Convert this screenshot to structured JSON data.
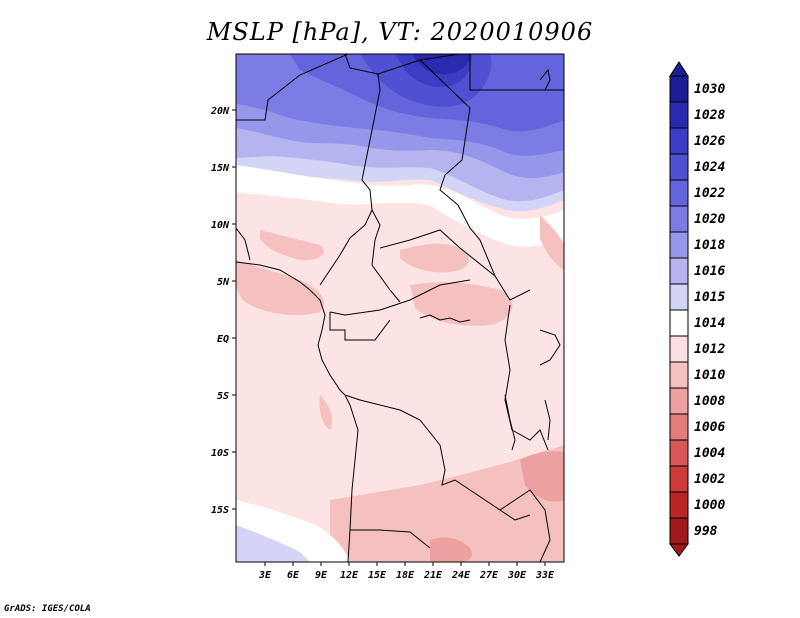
{
  "map": {
    "title": "MSLP [hPa], VT: 2020010906",
    "credit": "GrADS: IGES/COLA",
    "lat_labels": [
      "20N",
      "15N",
      "10N",
      "5N",
      "EQ",
      "5S",
      "10S",
      "15S"
    ],
    "lon_labels": [
      "3E",
      "6E",
      "9E",
      "12E",
      "15E",
      "18E",
      "21E",
      "24E",
      "27E",
      "30E",
      "33E"
    ]
  },
  "colorbar": {
    "labels": [
      "1030",
      "1028",
      "1026",
      "1024",
      "1022",
      "1020",
      "1018",
      "1016",
      "1015",
      "1014",
      "1012",
      "1010",
      "1008",
      "1006",
      "1004",
      "1002",
      "1000",
      "998"
    ],
    "colors": [
      "#1c1c96",
      "#2a2aae",
      "#3c3cc4",
      "#5050d2",
      "#6464dc",
      "#7c7ce4",
      "#9696ea",
      "#b4b4f0",
      "#d4d4f6",
      "#ffffff",
      "#fbe0e0",
      "#f5c0c0",
      "#eca0a0",
      "#e47c7c",
      "#d85858",
      "#cc3a3a",
      "#b82626",
      "#a01a1a"
    ]
  },
  "colors": {
    "blue_dark": "#2a2aae",
    "blue_mid": "#6464dc",
    "blue_light": "#b4b4f0",
    "pale_blue": "#d4d4f6",
    "pink_light": "#fde4e4",
    "pink_mid": "#f5c0c0",
    "pink_dark": "#eca0a0"
  }
}
